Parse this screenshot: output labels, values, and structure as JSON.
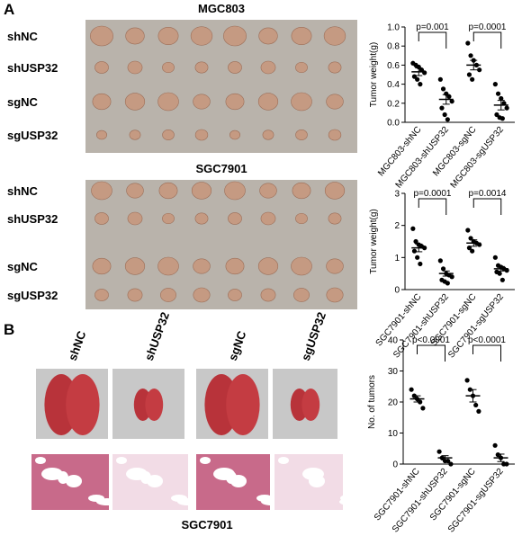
{
  "chart_data": [
    {
      "type": "scatter",
      "ylabel": "Tumor weight(g)",
      "categories": [
        "MGC803-shNC",
        "MGC803-shUSP32",
        "MGC803-sgNC",
        "MGC803-sgUSP32"
      ],
      "points": [
        [
          0.62,
          0.6,
          0.58,
          0.55,
          0.52,
          0.48,
          0.45,
          0.4
        ],
        [
          0.45,
          0.35,
          0.3,
          0.27,
          0.22,
          0.15,
          0.08,
          0.03
        ],
        [
          0.83,
          0.7,
          0.65,
          0.6,
          0.55,
          0.5,
          0.45
        ],
        [
          0.4,
          0.3,
          0.25,
          0.2,
          0.15,
          0.08,
          0.05,
          0.04
        ]
      ],
      "means": [
        0.53,
        0.24,
        0.6,
        0.18
      ],
      "sems": [
        0.04,
        0.05,
        0.05,
        0.05
      ],
      "annotations": [
        "p=0.001",
        "p=0.0001"
      ],
      "color": "#000000",
      "ylim": [
        0,
        1
      ],
      "yticks": [
        {
          "value": 0,
          "label": "0.0"
        },
        0.2,
        0.4,
        0.6,
        0.8,
        {
          "value": 1,
          "label": "1.0"
        }
      ]
    },
    {
      "type": "scatter",
      "ylabel": "Tumor weight(g)",
      "categories": [
        "SGC7901-shNC",
        "SGC7901-shUSP32",
        "SGC7901-sgNC",
        "SGC7901-sgUSP32"
      ],
      "points": [
        [
          1.9,
          1.5,
          1.4,
          1.35,
          1.3,
          1.2,
          1.0,
          0.8
        ],
        [
          0.9,
          0.65,
          0.5,
          0.45,
          0.4,
          0.3,
          0.25,
          0.2
        ],
        [
          1.85,
          1.6,
          1.5,
          1.45,
          1.4,
          1.3,
          1.2
        ],
        [
          1.0,
          0.75,
          0.7,
          0.65,
          0.6,
          0.55,
          0.5,
          0.3
        ]
      ],
      "means": [
        1.3,
        0.5,
        1.45,
        0.65
      ],
      "sems": [
        0.12,
        0.08,
        0.1,
        0.07
      ],
      "annotations": [
        "p=0.0001",
        "p=0.0014"
      ],
      "color": "#000000",
      "ylim": [
        0,
        3
      ],
      "yticks": [
        0,
        1,
        2,
        3
      ]
    },
    {
      "type": "scatter",
      "ylabel": "No. of tumors",
      "categories": [
        "SGC7901-shNC",
        "SGC7901-shUSP32",
        "SGC7901-sgNC",
        "SGC7901-sgUSP32"
      ],
      "points": [
        [
          24,
          22,
          21,
          20,
          18
        ],
        [
          4,
          2,
          1,
          1,
          0
        ],
        [
          27,
          24,
          22,
          19,
          17
        ],
        [
          6,
          3,
          2,
          0,
          0
        ]
      ],
      "means": [
        21,
        2,
        22,
        2
      ],
      "sems": [
        1,
        0.7,
        2,
        1.2
      ],
      "annotations": [
        "p<0.0001",
        "p<0.0001"
      ],
      "color": "#000000",
      "ylim": [
        0,
        40
      ],
      "yticks": [
        0,
        10,
        20,
        30,
        40
      ]
    }
  ],
  "figure": {
    "panel_a": {
      "label": "A",
      "blocks": [
        {
          "title": "MGC803",
          "rows": [
            "shNC",
            "shUSP32",
            "sgNC",
            "sgUSP32"
          ]
        },
        {
          "title": "SGC7901",
          "rows": [
            "shNC",
            "shUSP32",
            "sgNC",
            "sgUSP32"
          ]
        }
      ]
    },
    "panel_b": {
      "label": "B",
      "columns": [
        "shNC",
        "shUSP32",
        "sgNC",
        "sgUSP32"
      ],
      "caption": "SGC7901"
    }
  }
}
